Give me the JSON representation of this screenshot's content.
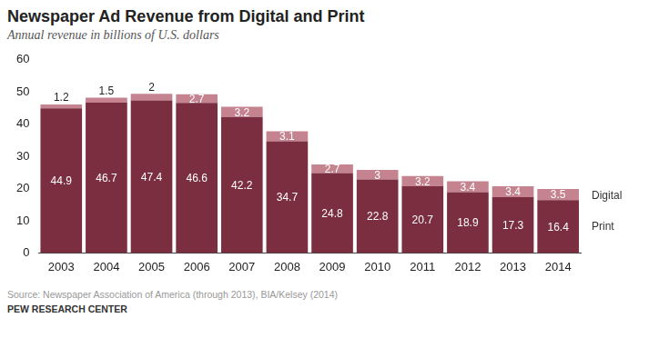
{
  "chart_data": {
    "type": "bar",
    "title": "Newspaper Ad Revenue from Digital and Print",
    "subtitle": "Annual revenue in billions of U.S. dollars",
    "categories": [
      "2003",
      "2004",
      "2005",
      "2006",
      "2007",
      "2008",
      "2009",
      "2010",
      "2011",
      "2012",
      "2013",
      "2014"
    ],
    "series": [
      {
        "name": "Print",
        "color": "#7a2e40",
        "values": [
          44.9,
          46.7,
          47.4,
          46.6,
          42.2,
          34.7,
          24.8,
          22.8,
          20.7,
          18.9,
          17.3,
          16.4
        ]
      },
      {
        "name": "Digital",
        "color": "#c4838f",
        "values": [
          1.2,
          1.5,
          2,
          2.7,
          3.2,
          3.1,
          2.7,
          3,
          3.2,
          3.4,
          3.4,
          3.5
        ]
      }
    ],
    "stacked": true,
    "data_labels": true,
    "ylim": [
      0,
      60
    ],
    "yticks": [
      0,
      10,
      20,
      30,
      40,
      50,
      60
    ],
    "grid": false,
    "legend": "right",
    "source": "Source: Newspaper Association of America (through 2013), BIA/Kelsey (2014)",
    "credit": "PEW RESEARCH CENTER"
  }
}
